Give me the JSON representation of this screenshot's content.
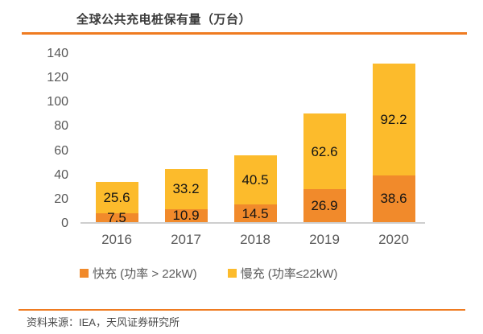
{
  "title": "全球公共充电桩保有量（万台）",
  "source": "资料来源：IEA，天风证券研究所",
  "colors": {
    "fast": "#F18A2B",
    "slow": "#FCBB2C",
    "rule": "#EF7B21",
    "axis_text": "#595959",
    "value_text": "#141414",
    "baseline": "#CECECE"
  },
  "legend": [
    {
      "label": "快充 (功率 > 22kW)",
      "color_key": "fast"
    },
    {
      "label": "慢充 (功率≤22kW)",
      "color_key": "slow"
    }
  ],
  "chart_data": {
    "type": "bar",
    "stacked": true,
    "title": "全球公共充电桩保有量（万台）",
    "categories": [
      "2016",
      "2017",
      "2018",
      "2019",
      "2020"
    ],
    "series": [
      {
        "name": "快充 (功率 > 22kW)",
        "color_key": "fast",
        "values": [
          7.5,
          10.9,
          14.5,
          26.9,
          38.6
        ]
      },
      {
        "name": "慢充 (功率≤22kW)",
        "color_key": "slow",
        "values": [
          25.6,
          33.2,
          40.5,
          62.6,
          92.2
        ]
      }
    ],
    "totals": [
      33.1,
      44.1,
      55.0,
      89.5,
      130.8
    ],
    "xlabel": "",
    "ylabel": "",
    "ylim": [
      0,
      140
    ],
    "yticks": [
      0,
      20,
      40,
      60,
      80,
      100,
      120,
      140
    ],
    "grid": false,
    "legend_position": "bottom",
    "data_labels": "inside-center, one decimal"
  }
}
